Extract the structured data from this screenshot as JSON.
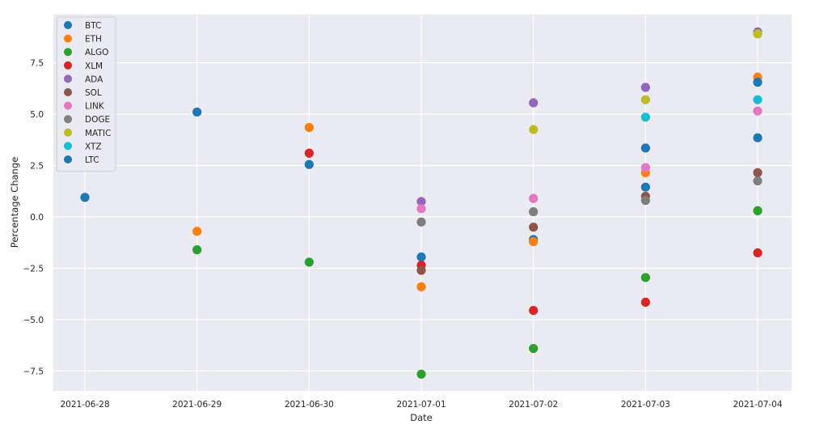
{
  "chart_data": {
    "type": "scatter",
    "title": "",
    "xlabel": "Date",
    "ylabel": "Percentage Change",
    "x_categories": [
      "2021-06-28",
      "2021-06-29",
      "2021-06-30",
      "2021-07-01",
      "2021-07-02",
      "2021-07-03",
      "2021-07-04"
    ],
    "ylim": [
      -8.5,
      9.5
    ],
    "yticks": [
      -7.5,
      -5.0,
      -2.5,
      0.0,
      2.5,
      5.0,
      7.5
    ],
    "ytick_labels": [
      "−7.5",
      "−5.0",
      "−2.5",
      "0.0",
      "2.5",
      "5.0",
      "7.5"
    ],
    "grid": true,
    "legend_position": "top-left",
    "series": [
      {
        "name": "BTC",
        "color": "#1f77b4",
        "points": [
          [
            "2021-06-28",
            0.95
          ],
          [
            "2021-06-29",
            5.1
          ],
          [
            "2021-06-30",
            2.55
          ],
          [
            "2021-07-01",
            -1.95
          ],
          [
            "2021-07-02",
            -1.1
          ],
          [
            "2021-07-03",
            1.45
          ],
          [
            "2021-07-04",
            3.85
          ]
        ]
      },
      {
        "name": "ETH",
        "color": "#ff7f0e",
        "points": [
          [
            "2021-06-29",
            -0.7
          ],
          [
            "2021-06-30",
            4.35
          ],
          [
            "2021-07-01",
            -3.4
          ],
          [
            "2021-07-02",
            -1.2
          ],
          [
            "2021-07-03",
            2.15
          ],
          [
            "2021-07-04",
            6.8
          ]
        ]
      },
      {
        "name": "ALGO",
        "color": "#2ca02c",
        "points": [
          [
            "2021-06-29",
            -1.6
          ],
          [
            "2021-06-30",
            -2.2
          ],
          [
            "2021-07-01",
            -7.65
          ],
          [
            "2021-07-02",
            -6.4
          ],
          [
            "2021-07-03",
            -2.95
          ],
          [
            "2021-07-04",
            0.3
          ]
        ]
      },
      {
        "name": "XLM",
        "color": "#d62728",
        "points": [
          [
            "2021-06-30",
            3.1
          ],
          [
            "2021-07-01",
            -2.35
          ],
          [
            "2021-07-02",
            -4.55
          ],
          [
            "2021-07-03",
            -4.15
          ],
          [
            "2021-07-04",
            -1.75
          ]
        ]
      },
      {
        "name": "ADA",
        "color": "#9467bd",
        "points": [
          [
            "2021-07-01",
            0.75
          ],
          [
            "2021-07-02",
            5.55
          ],
          [
            "2021-07-03",
            6.3
          ],
          [
            "2021-07-04",
            9.0
          ]
        ]
      },
      {
        "name": "SOL",
        "color": "#8c564b",
        "points": [
          [
            "2021-07-01",
            -2.6
          ],
          [
            "2021-07-02",
            -0.5
          ],
          [
            "2021-07-03",
            1.0
          ],
          [
            "2021-07-04",
            2.15
          ]
        ]
      },
      {
        "name": "LINK",
        "color": "#e377c2",
        "points": [
          [
            "2021-07-01",
            0.4
          ],
          [
            "2021-07-02",
            0.9
          ],
          [
            "2021-07-03",
            2.4
          ],
          [
            "2021-07-04",
            5.15
          ]
        ]
      },
      {
        "name": "DOGE",
        "color": "#7f7f7f",
        "points": [
          [
            "2021-07-01",
            -0.25
          ],
          [
            "2021-07-02",
            0.25
          ],
          [
            "2021-07-03",
            0.8
          ],
          [
            "2021-07-04",
            1.75
          ]
        ]
      },
      {
        "name": "MATIC",
        "color": "#bcbd22",
        "points": [
          [
            "2021-07-02",
            4.25
          ],
          [
            "2021-07-03",
            5.7
          ],
          [
            "2021-07-04",
            8.9
          ]
        ]
      },
      {
        "name": "XTZ",
        "color": "#17becf",
        "points": [
          [
            "2021-07-03",
            4.85
          ],
          [
            "2021-07-04",
            5.7
          ]
        ]
      },
      {
        "name": "LTC",
        "color": "#1f77b4",
        "points": [
          [
            "2021-07-03",
            3.35
          ],
          [
            "2021-07-04",
            6.55
          ]
        ]
      }
    ]
  }
}
